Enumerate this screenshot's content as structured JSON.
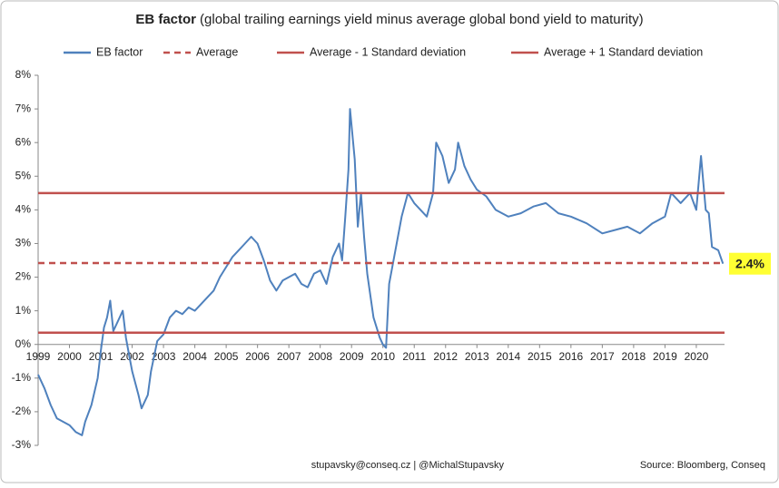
{
  "chart_data": {
    "type": "line",
    "title": "EB factor",
    "subtitle": "(global trailing earnings yield minus average global bond yield to maturity)",
    "xlim": [
      1999,
      2020.9
    ],
    "xticks": [
      1999,
      2000,
      2001,
      2002,
      2003,
      2004,
      2005,
      2006,
      2007,
      2008,
      2009,
      2010,
      2011,
      2012,
      2013,
      2014,
      2015,
      2016,
      2017,
      2018,
      2019,
      2020
    ],
    "ylim": [
      -3,
      8
    ],
    "yticks": [
      {
        "value": -3,
        "label": "-3%"
      },
      {
        "value": -2,
        "label": "-2%"
      },
      {
        "value": -1,
        "label": "-1%"
      },
      {
        "value": 0,
        "label": "0%"
      },
      {
        "value": 1,
        "label": "1%"
      },
      {
        "value": 2,
        "label": "2%"
      },
      {
        "value": 3,
        "label": "3%"
      },
      {
        "value": 4,
        "label": "4%"
      },
      {
        "value": 5,
        "label": "5%"
      },
      {
        "value": 6,
        "label": "6%"
      },
      {
        "value": 7,
        "label": "7%"
      },
      {
        "value": 8,
        "label": "8%"
      }
    ],
    "grid": false,
    "series": [
      {
        "name": "EB factor",
        "color": "#4f81bd",
        "x": [
          1999.0,
          1999.2,
          1999.4,
          1999.6,
          1999.8,
          2000.0,
          2000.2,
          2000.4,
          2000.5,
          2000.7,
          2000.9,
          2001.0,
          2001.1,
          2001.2,
          2001.3,
          2001.4,
          2001.5,
          2001.7,
          2001.8,
          2001.9,
          2002.0,
          2002.2,
          2002.3,
          2002.5,
          2002.6,
          2002.8,
          2003.0,
          2003.2,
          2003.4,
          2003.6,
          2003.8,
          2004.0,
          2004.2,
          2004.4,
          2004.6,
          2004.8,
          2005.0,
          2005.2,
          2005.4,
          2005.6,
          2005.8,
          2006.0,
          2006.2,
          2006.4,
          2006.6,
          2006.8,
          2007.0,
          2007.2,
          2007.4,
          2007.6,
          2007.8,
          2008.0,
          2008.2,
          2008.4,
          2008.6,
          2008.7,
          2008.8,
          2008.9,
          2008.95,
          2009.1,
          2009.2,
          2009.3,
          2009.4,
          2009.5,
          2009.7,
          2009.9,
          2010.0,
          2010.1,
          2010.2,
          2010.4,
          2010.6,
          2010.8,
          2011.0,
          2011.2,
          2011.4,
          2011.6,
          2011.7,
          2011.9,
          2012.1,
          2012.3,
          2012.4,
          2012.6,
          2012.8,
          2013.0,
          2013.3,
          2013.6,
          2014.0,
          2014.4,
          2014.8,
          2015.2,
          2015.6,
          2016.0,
          2016.5,
          2017.0,
          2017.4,
          2017.8,
          2018.2,
          2018.6,
          2019.0,
          2019.2,
          2019.5,
          2019.8,
          2020.0,
          2020.15,
          2020.3,
          2020.4,
          2020.5,
          2020.7,
          2020.85
        ],
        "values": [
          -0.9,
          -1.3,
          -1.8,
          -2.2,
          -2.3,
          -2.4,
          -2.6,
          -2.7,
          -2.3,
          -1.8,
          -1.0,
          -0.2,
          0.5,
          0.8,
          1.3,
          0.4,
          0.6,
          1.0,
          0.2,
          -0.3,
          -0.8,
          -1.5,
          -1.9,
          -1.5,
          -0.8,
          0.1,
          0.3,
          0.8,
          1.0,
          0.9,
          1.1,
          1.0,
          1.2,
          1.4,
          1.6,
          2.0,
          2.3,
          2.6,
          2.8,
          3.0,
          3.2,
          3.0,
          2.5,
          1.9,
          1.6,
          1.9,
          2.0,
          2.1,
          1.8,
          1.7,
          2.1,
          2.2,
          1.8,
          2.6,
          3.0,
          2.5,
          3.8,
          5.2,
          7.0,
          5.5,
          3.5,
          4.5,
          3.2,
          2.1,
          0.8,
          0.2,
          0.0,
          -0.1,
          1.8,
          2.8,
          3.8,
          4.5,
          4.2,
          4.0,
          3.8,
          4.5,
          6.0,
          5.6,
          4.8,
          5.2,
          6.0,
          5.3,
          4.9,
          4.6,
          4.4,
          4.0,
          3.8,
          3.9,
          4.1,
          4.2,
          3.9,
          3.8,
          3.6,
          3.3,
          3.4,
          3.5,
          3.3,
          3.6,
          3.8,
          4.5,
          4.2,
          4.5,
          4.0,
          5.6,
          4.0,
          3.9,
          2.9,
          2.8,
          2.4
        ]
      },
      {
        "name": "Average",
        "color": "#c0504d",
        "style": "dashed",
        "value": 2.42
      },
      {
        "name": "Average - 1 Standard deviation",
        "color": "#c0504d",
        "style": "solid",
        "value": 0.35
      },
      {
        "name": "Average + 1 Standard deviation",
        "color": "#c0504d",
        "style": "solid",
        "value": 4.5
      }
    ],
    "annotation": {
      "text": "2.4%",
      "value": 2.4
    },
    "footer": "stupavsky@conseq.cz  |  @MichalStupavsky",
    "source": "Source: Bloomberg, Conseq"
  }
}
